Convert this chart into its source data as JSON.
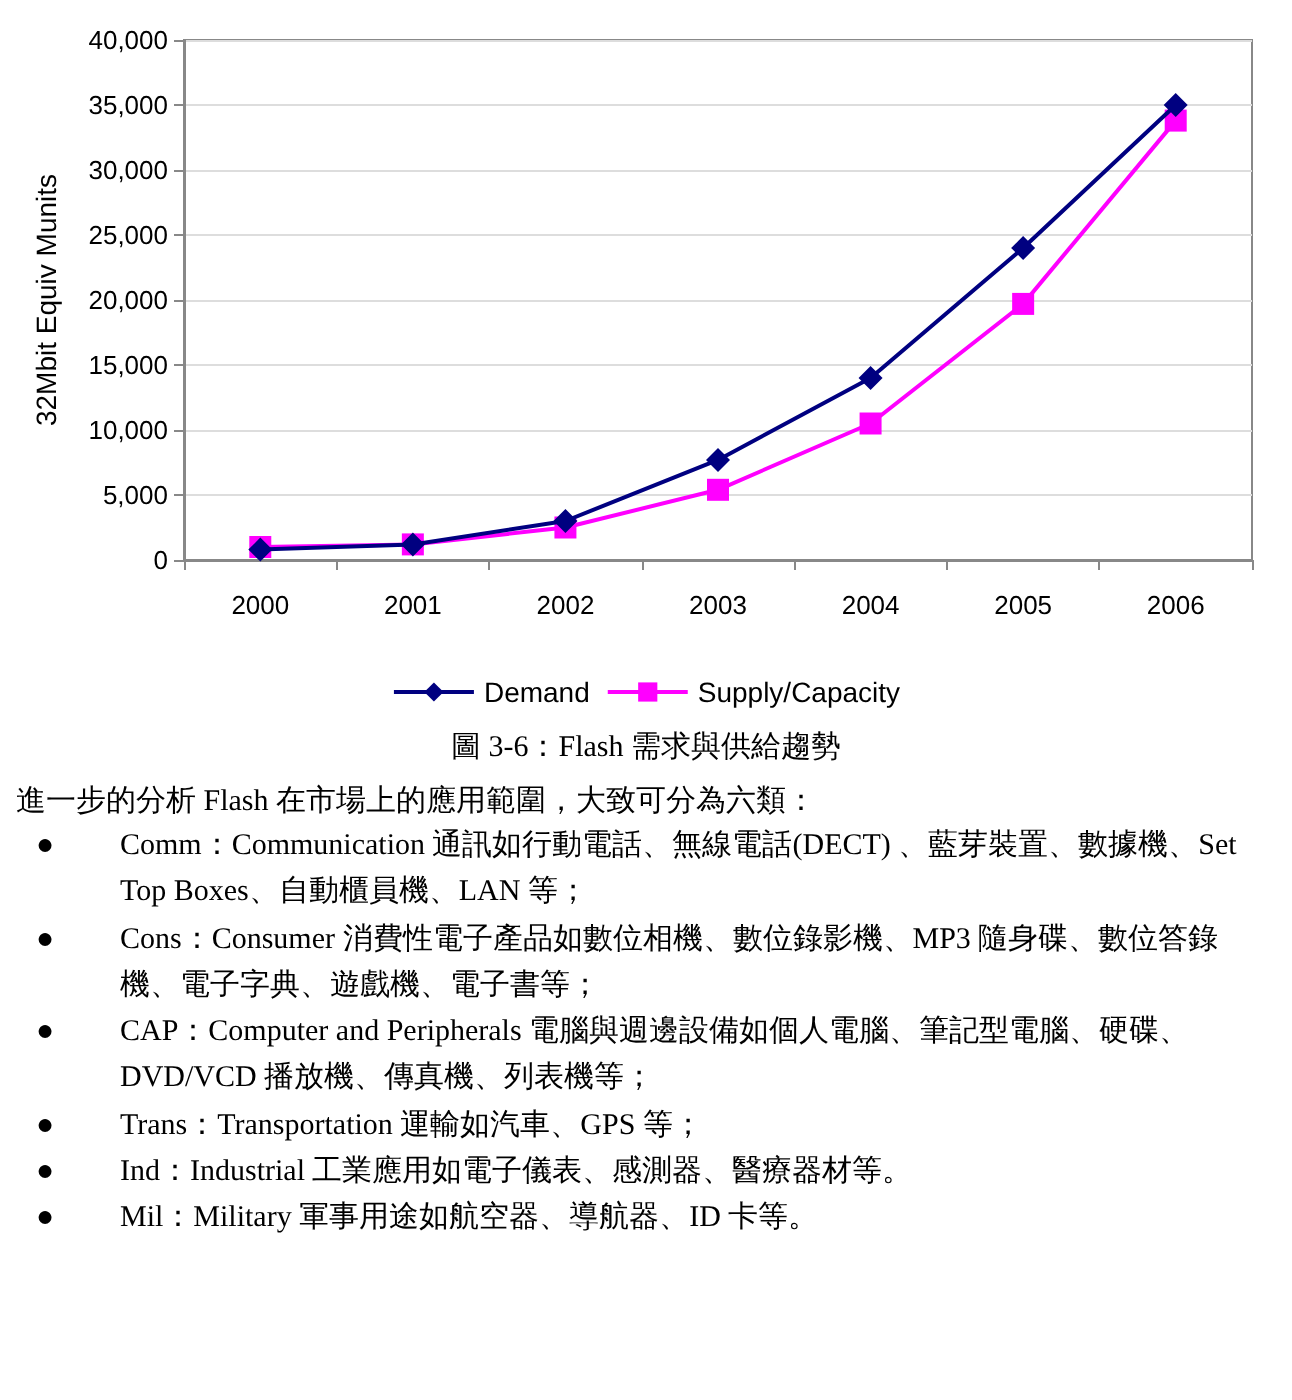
{
  "chart_data": {
    "type": "line",
    "title": "圖 3-6：Flash 需求與供給趨勢",
    "subtitle": "進一步的分析 Flash 在市場上的應用範圍，大致可分為六類：",
    "ylabel": "32Mbit Equiv Munits",
    "categories": [
      "2000",
      "2001",
      "2002",
      "2003",
      "2004",
      "2005",
      "2006"
    ],
    "series": [
      {
        "name": "Demand",
        "color": "#000080",
        "marker": "diamond",
        "values": [
          800,
          1200,
          3000,
          7700,
          14000,
          24000,
          35000
        ]
      },
      {
        "name": "Supply/Capacity",
        "color": "#ff00ff",
        "marker": "square",
        "values": [
          1000,
          1200,
          2500,
          5400,
          10500,
          19700,
          33800
        ]
      }
    ],
    "ylim": [
      0,
      40000
    ],
    "yticks": [
      0,
      {
        "value": 5000,
        "label": "5,000"
      },
      {
        "value": 10000,
        "label": "10,000"
      },
      {
        "value": 15000,
        "label": "15,000"
      },
      {
        "value": 20000,
        "label": "20,000"
      },
      {
        "value": 25000,
        "label": "25,000"
      },
      {
        "value": 30000,
        "label": "30,000"
      },
      {
        "value": 35000,
        "label": "35,000"
      },
      {
        "value": 40000,
        "label": "40,000"
      }
    ],
    "grid": "y",
    "legend": "bottom",
    "annotations": [
      "●\tComm：Communication 通訊如行動電話、無線電話(DECT) 、藍芽裝置、數據機、Set Top Boxes、自動櫃員機、LAN 等；",
      "●\tCons：Consumer 消費性電子產品如數位相機、數位錄影機、MP3 隨身碟、數位答錄機、電子字典、遊戲機、電子書等；",
      "●\tCAP：Computer and Peripherals 電腦與週邊設備如個人電腦、筆記型電腦、硬碟、DVD/VCD 播放機、傳真機、列表機等；",
      "●\tTrans：Transportation 運輸如汽車、GPS 等；",
      "●\tInd：Industrial 工業應用如電子儀表、感測器、醫療器材等。",
      "●\tMil：Military 軍事用途如航空器、導航器、ID 卡等。"
    ]
  }
}
